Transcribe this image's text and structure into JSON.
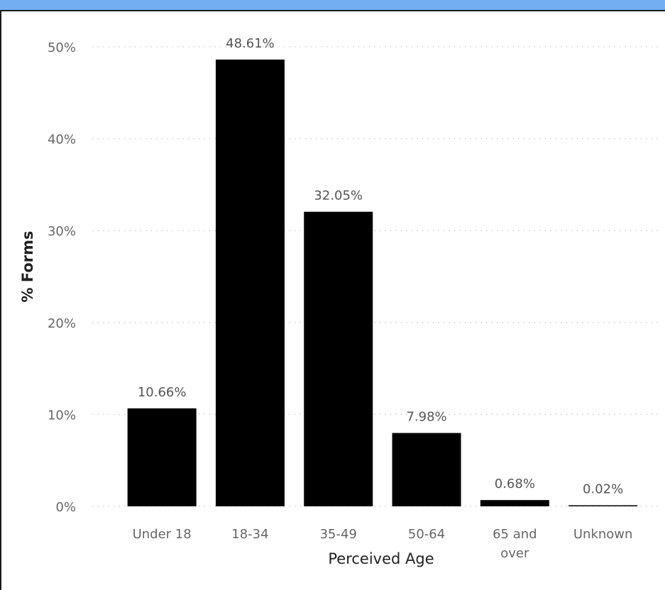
{
  "chart_data": {
    "type": "bar",
    "title": "",
    "xlabel": "Perceived Age",
    "ylabel": "% Forms",
    "categories": [
      "Under 18",
      "18-34",
      "35-49",
      "50-64",
      "65 and over",
      "Unknown"
    ],
    "category_lines": [
      [
        "Under 18"
      ],
      [
        "18-34"
      ],
      [
        "35-49"
      ],
      [
        "50-64"
      ],
      [
        "65 and",
        "over"
      ],
      [
        "Unknown"
      ]
    ],
    "values": [
      10.66,
      48.61,
      32.05,
      7.98,
      0.68,
      0.02
    ],
    "value_labels": [
      "10.66%",
      "48.61%",
      "32.05%",
      "7.98%",
      "0.68%",
      "0.02%"
    ],
    "ylim": [
      0,
      50
    ],
    "yticks": [
      0,
      10,
      20,
      30,
      40,
      50
    ],
    "ytick_labels": [
      "0%",
      "10%",
      "20%",
      "30%",
      "40%",
      "50%"
    ],
    "bar_color": "#000000",
    "grid": "horizontal dotted",
    "legend": "none"
  },
  "colors": {
    "header_strip": "#73aef3",
    "gridline": "#c8c8c8",
    "bar": "#000000"
  }
}
